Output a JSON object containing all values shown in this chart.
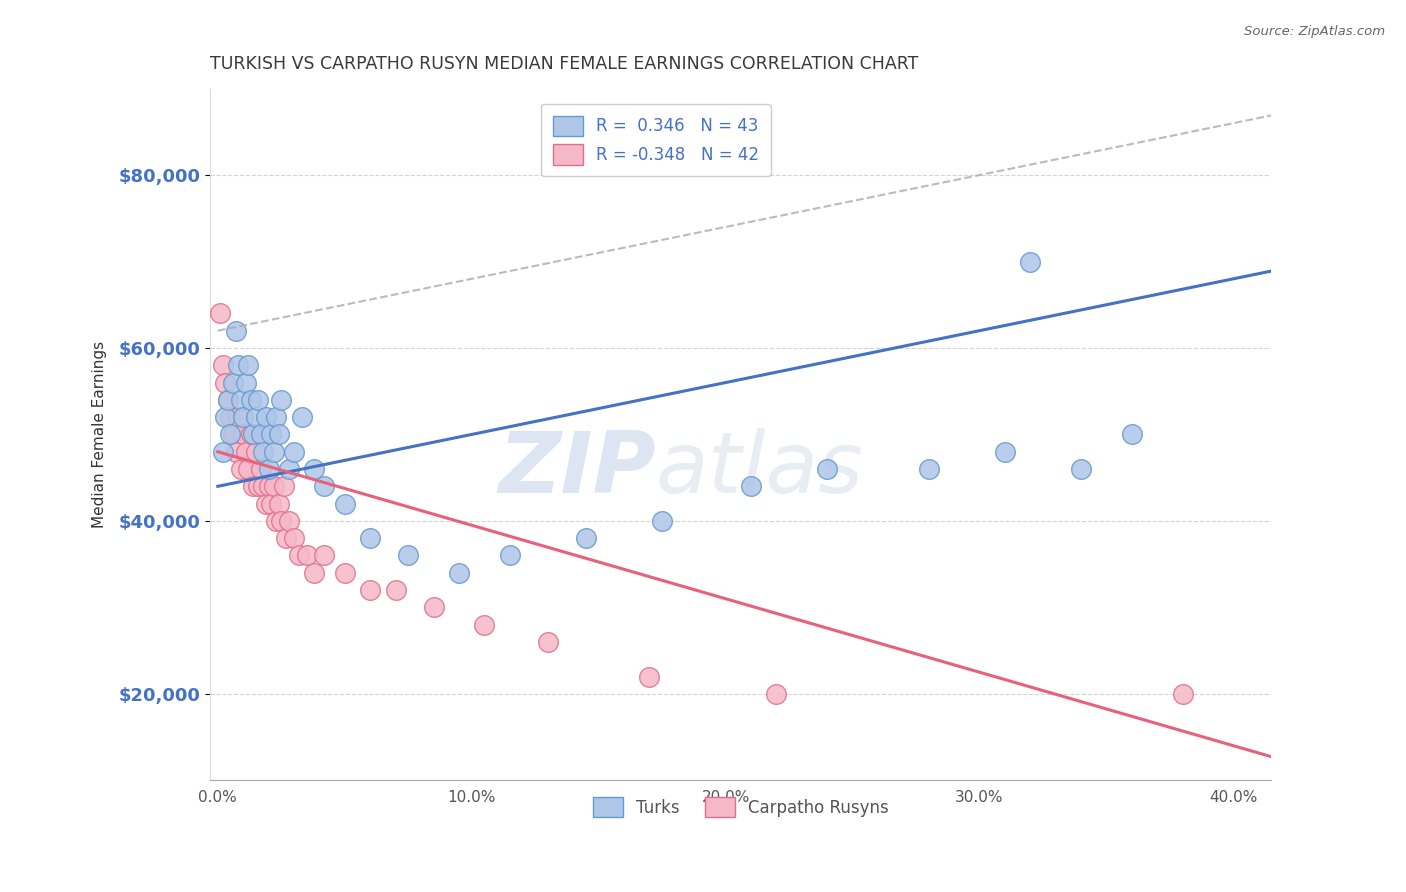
{
  "title": "TURKISH VS CARPATHO RUSYN MEDIAN FEMALE EARNINGS CORRELATION CHART",
  "source_text": "Source: ZipAtlas.com",
  "ylabel": "Median Female Earnings",
  "xlabel_ticks": [
    "0.0%",
    "10.0%",
    "20.0%",
    "30.0%",
    "40.0%"
  ],
  "xlabel_vals": [
    0.0,
    0.1,
    0.2,
    0.3,
    0.4
  ],
  "ylabel_ticks": [
    "$20,000",
    "$40,000",
    "$60,000",
    "$80,000"
  ],
  "ylabel_vals": [
    20000,
    40000,
    60000,
    80000
  ],
  "ylim": [
    10000,
    90000
  ],
  "xlim": [
    -0.003,
    0.415
  ],
  "watermark_zip": "ZIP",
  "watermark_atlas": "atlas",
  "title_color": "#3a3a3a",
  "title_fontsize": 12.5,
  "tick_label_color": "#4472c4",
  "grid_color": "#c8c8c8",
  "turks_color": "#aec6e8",
  "turks_edge": "#6699cc",
  "rusyns_color": "#f5b8c8",
  "rusyns_edge": "#e0708a",
  "trend_turks_color": "#4472c4",
  "trend_rusyns_color": "#e8607a",
  "trend_ci_color": "#aaaaaa",
  "turks_x": [
    0.002,
    0.003,
    0.004,
    0.005,
    0.006,
    0.007,
    0.008,
    0.009,
    0.01,
    0.011,
    0.012,
    0.013,
    0.014,
    0.015,
    0.016,
    0.017,
    0.018,
    0.019,
    0.02,
    0.021,
    0.022,
    0.023,
    0.024,
    0.025,
    0.028,
    0.03,
    0.033,
    0.038,
    0.042,
    0.05,
    0.06,
    0.075,
    0.095,
    0.115,
    0.145,
    0.175,
    0.21,
    0.24,
    0.28,
    0.31,
    0.34,
    0.36,
    0.32
  ],
  "turks_y": [
    48000,
    52000,
    54000,
    50000,
    56000,
    62000,
    58000,
    54000,
    52000,
    56000,
    58000,
    54000,
    50000,
    52000,
    54000,
    50000,
    48000,
    52000,
    46000,
    50000,
    48000,
    52000,
    50000,
    54000,
    46000,
    48000,
    52000,
    46000,
    44000,
    42000,
    38000,
    36000,
    34000,
    36000,
    38000,
    40000,
    44000,
    46000,
    46000,
    48000,
    46000,
    50000,
    70000
  ],
  "rusyns_x": [
    0.001,
    0.002,
    0.003,
    0.004,
    0.005,
    0.006,
    0.007,
    0.008,
    0.009,
    0.01,
    0.011,
    0.012,
    0.013,
    0.014,
    0.015,
    0.016,
    0.017,
    0.018,
    0.019,
    0.02,
    0.021,
    0.022,
    0.023,
    0.024,
    0.025,
    0.026,
    0.027,
    0.028,
    0.03,
    0.032,
    0.035,
    0.038,
    0.042,
    0.05,
    0.06,
    0.07,
    0.085,
    0.105,
    0.13,
    0.17,
    0.22,
    0.38
  ],
  "rusyns_y": [
    64000,
    58000,
    56000,
    54000,
    52000,
    50000,
    48000,
    52000,
    46000,
    50000,
    48000,
    46000,
    50000,
    44000,
    48000,
    44000,
    46000,
    44000,
    42000,
    44000,
    42000,
    44000,
    40000,
    42000,
    40000,
    44000,
    38000,
    40000,
    38000,
    36000,
    36000,
    34000,
    36000,
    34000,
    32000,
    32000,
    30000,
    28000,
    26000,
    22000,
    20000,
    20000
  ]
}
